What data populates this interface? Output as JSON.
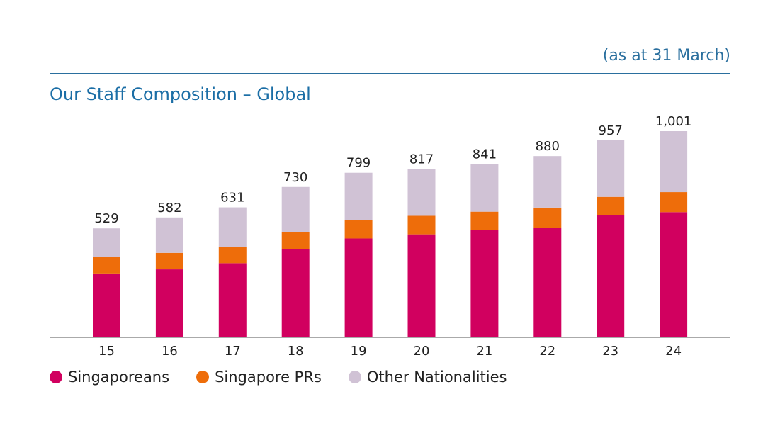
{
  "note": "(as at 31 March)",
  "title": "Our Staff Composition – Global",
  "legend": {
    "singaporeans": "Singaporeans",
    "prs": "Singapore PRs",
    "others": "Other Nationalities"
  },
  "colors": {
    "singaporeans": "#d1005f",
    "prs": "#ee6d0a",
    "others": "#d0c2d5",
    "accent": "#1b6ea6"
  },
  "chart_data": {
    "type": "bar",
    "stacked": true,
    "categories": [
      "15",
      "16",
      "17",
      "18",
      "19",
      "20",
      "21",
      "22",
      "23",
      "24"
    ],
    "totals": [
      "529",
      "582",
      "631",
      "730",
      "799",
      "817",
      "841",
      "880",
      "957",
      "1,001"
    ],
    "series": [
      {
        "name": "Singaporeans",
        "values": [
          310,
          330,
          360,
          430,
          480,
          500,
          520,
          533,
          592,
          608
        ]
      },
      {
        "name": "Singapore PRs",
        "values": [
          80,
          80,
          80,
          80,
          90,
          90,
          90,
          97,
          90,
          97
        ]
      },
      {
        "name": "Other Nationalities",
        "values": [
          139,
          172,
          191,
          220,
          229,
          227,
          231,
          250,
          275,
          296
        ]
      }
    ],
    "legend_position": "bottom-left",
    "grid": false
  }
}
